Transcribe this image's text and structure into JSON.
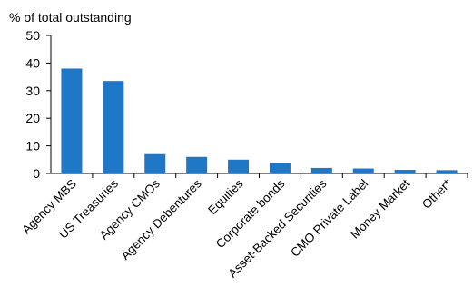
{
  "chart_data": {
    "type": "bar",
    "ylabel": "% of total outstanding",
    "xlabel": "",
    "categories": [
      "Agency MBS",
      "US Treasuries",
      "Agency CMOs",
      "Agency Debentures",
      "Equities",
      "Corporate bonds",
      "Asset-Backed Securities",
      "CMO Private Label",
      "Money Market",
      "Other*"
    ],
    "values": [
      38,
      33.5,
      7,
      6,
      5,
      3.8,
      2,
      1.8,
      1.3,
      1.2
    ],
    "ylim": [
      0,
      50
    ],
    "yticks": [
      0,
      10,
      20,
      30,
      40,
      50
    ],
    "yticklabels": [
      "0",
      "10",
      "20",
      "30",
      "40",
      "50"
    ],
    "bar_color": "#1F77C8",
    "grid": false,
    "legend": "none"
  }
}
